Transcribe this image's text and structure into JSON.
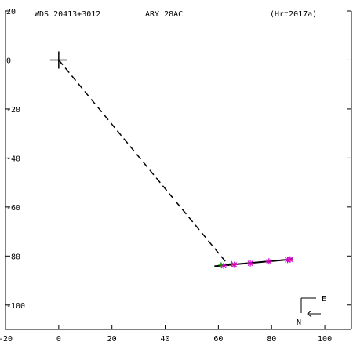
{
  "header": {
    "wds": "WDS 20413+3012",
    "discoverer": "ARY  28AC",
    "reference": "(Hrt2017a)"
  },
  "orientation": {
    "north_label": "N",
    "east_label": "E"
  },
  "chart_data": {
    "type": "scatter",
    "title": "",
    "xlabel": "",
    "ylabel": "",
    "xlim": [
      -20,
      110
    ],
    "ylim": [
      -110,
      20
    ],
    "grid": false,
    "x_ticks": [
      -20,
      0,
      20,
      40,
      60,
      80,
      100
    ],
    "y_ticks": [
      20,
      0,
      -20,
      -40,
      -60,
      -80,
      -100
    ],
    "primary": {
      "x": 0,
      "y": 0,
      "marker": "plus"
    },
    "connector": {
      "from": [
        0,
        0
      ],
      "to": [
        64,
        -84
      ],
      "style": "dashed"
    },
    "fit_line": {
      "from": [
        58.5,
        -84.2
      ],
      "to": [
        88,
        -81.3
      ],
      "color": "#000000"
    },
    "series": [
      {
        "marker": "asterisk",
        "color": "#d400d4",
        "points": [
          [
            62,
            -84.0
          ],
          [
            66,
            -83.6
          ],
          [
            72,
            -83.0
          ],
          [
            79,
            -82.2
          ],
          [
            86,
            -81.6
          ],
          [
            87,
            -81.4
          ]
        ]
      },
      {
        "marker": "plus",
        "color": "#00a000",
        "points": [
          [
            61,
            -83.7
          ],
          [
            65,
            -83.2
          ]
        ]
      }
    ],
    "residual_color": "#ff0000"
  }
}
